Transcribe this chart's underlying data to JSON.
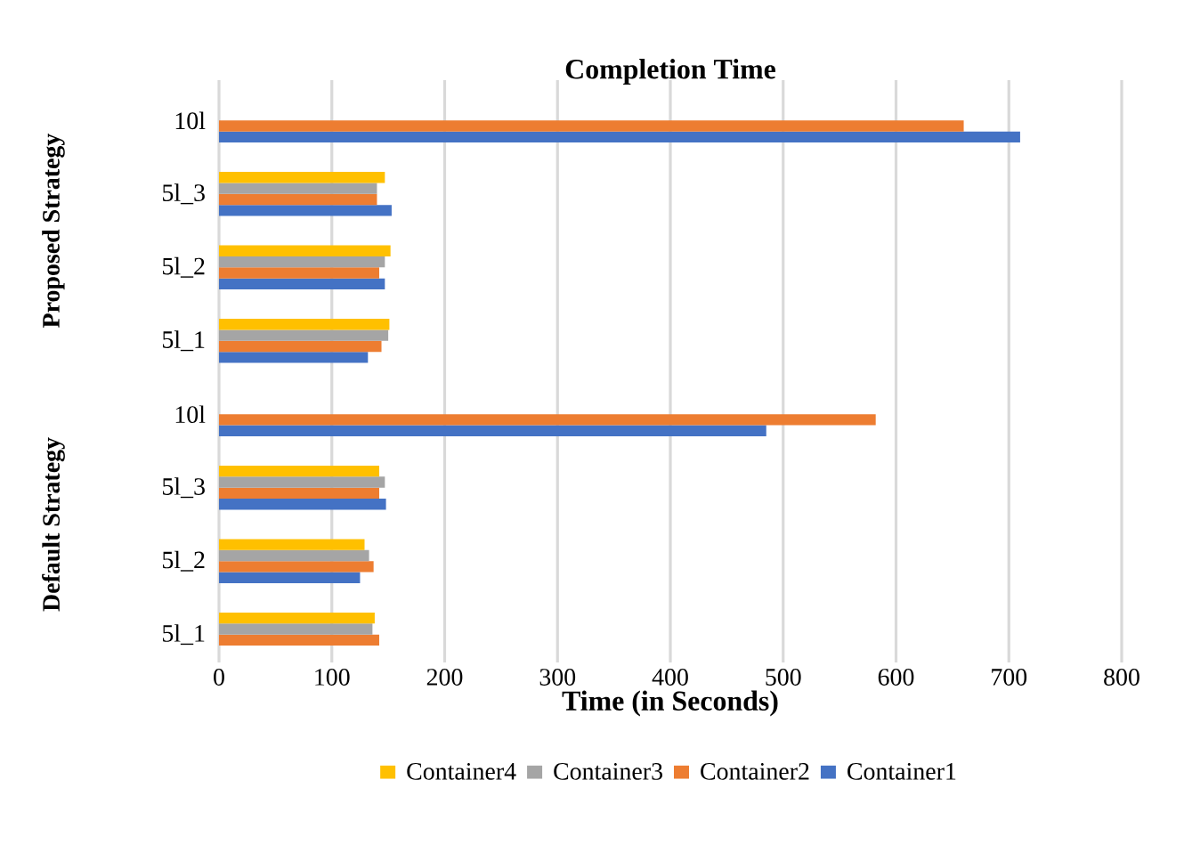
{
  "chart_data": {
    "type": "bar",
    "orientation": "horizontal",
    "title": "Completion Time",
    "xlabel": "Time (in Seconds)",
    "categories": [
      "10l",
      "5l_3",
      "5l_2",
      "5l_1",
      "10l",
      "5l_3",
      "5l_2",
      "5l_1"
    ],
    "annotations": [
      "Proposed Strategy",
      "Default Strategy"
    ],
    "series": [
      {
        "name": "Container1",
        "color": "#4472c4",
        "values": [
          710,
          153,
          147,
          132,
          485,
          148,
          125,
          null
        ]
      },
      {
        "name": "Container2",
        "color": "#ed7d31",
        "values": [
          660,
          140,
          142,
          144,
          582,
          142,
          137,
          142
        ]
      },
      {
        "name": "Container3",
        "color": "#a5a5a5",
        "values": [
          null,
          140,
          147,
          150,
          null,
          147,
          133,
          136
        ]
      },
      {
        "name": "Container4",
        "color": "#ffc000",
        "values": [
          null,
          147,
          152,
          151,
          null,
          142,
          129,
          138
        ]
      }
    ],
    "xlim": [
      0,
      800
    ],
    "xticks": [
      0,
      100,
      200,
      300,
      400,
      500,
      600,
      700,
      800
    ],
    "grid": "x",
    "legend": "bottom"
  }
}
